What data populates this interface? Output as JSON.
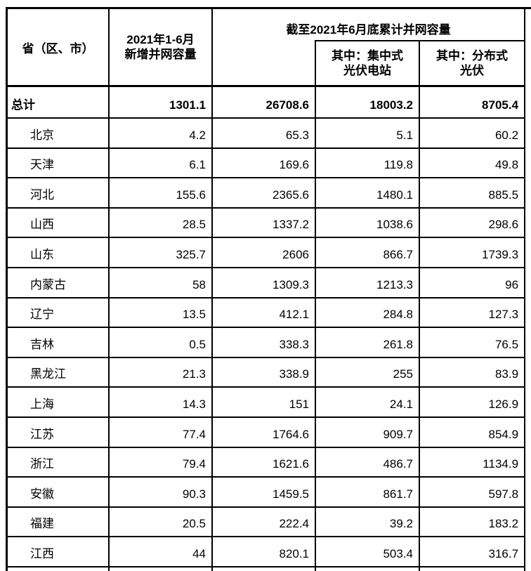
{
  "chart_data": {
    "type": "table",
    "header": {
      "province": "省（区、市）",
      "new_capacity": "2021年1-6月\n新增并网容量",
      "cumulative_group": "截至2021年6月底累计并网容量",
      "centralized": "其中：集中式\n光伏电站",
      "distributed": "其中：分布式\n光伏"
    },
    "total_row": {
      "name": "总计",
      "values": [
        "1301.1",
        "26708.6",
        "18003.2",
        "8705.4"
      ]
    },
    "rows": [
      {
        "province": "北京",
        "values": [
          "4.2",
          "65.3",
          "5.1",
          "60.2"
        ]
      },
      {
        "province": "天津",
        "values": [
          "6.1",
          "169.6",
          "119.8",
          "49.8"
        ]
      },
      {
        "province": "河北",
        "values": [
          "155.6",
          "2365.6",
          "1480.1",
          "885.5"
        ]
      },
      {
        "province": "山西",
        "values": [
          "28.5",
          "1337.2",
          "1038.6",
          "298.6"
        ]
      },
      {
        "province": "山东",
        "values": [
          "325.7",
          "2606",
          "866.7",
          "1739.3"
        ]
      },
      {
        "province": "内蒙古",
        "values": [
          "58",
          "1309.3",
          "1213.3",
          "96"
        ]
      },
      {
        "province": "辽宁",
        "values": [
          "13.5",
          "412.1",
          "284.8",
          "127.3"
        ]
      },
      {
        "province": "吉林",
        "values": [
          "0.5",
          "338.3",
          "261.8",
          "76.5"
        ]
      },
      {
        "province": "黑龙江",
        "values": [
          "21.3",
          "338.9",
          "255",
          "83.9"
        ]
      },
      {
        "province": "上海",
        "values": [
          "14.3",
          "151",
          "24.1",
          "126.9"
        ]
      },
      {
        "province": "江苏",
        "values": [
          "77.4",
          "1764.6",
          "909.7",
          "854.9"
        ]
      },
      {
        "province": "浙江",
        "values": [
          "79.4",
          "1621.6",
          "486.7",
          "1134.9"
        ]
      },
      {
        "province": "安徽",
        "values": [
          "90.3",
          "1459.5",
          "861.7",
          "597.8"
        ]
      },
      {
        "province": "福建",
        "values": [
          "20.5",
          "222.4",
          "39.2",
          "183.2"
        ]
      },
      {
        "province": "江西",
        "values": [
          "44",
          "820.1",
          "503.4",
          "316.7"
        ]
      }
    ],
    "layout": {
      "border_color": "#000000",
      "text_color": "#000000",
      "background": "#ffffff"
    }
  }
}
